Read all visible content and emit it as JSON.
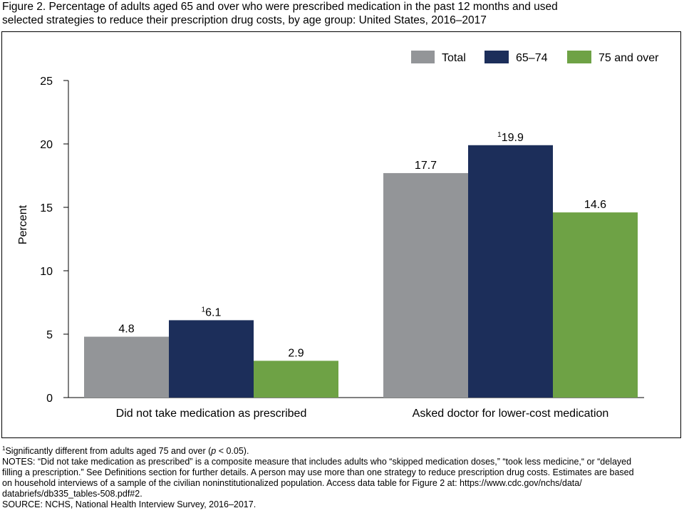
{
  "title": {
    "line1": "Figure 2. Percentage of adults aged 65 and over who were prescribed medication in the past 12 months and used",
    "line2": "selected strategies to reduce their prescription drug costs, by age group: United States, 2016–2017"
  },
  "chart_data": {
    "type": "bar",
    "title": "Figure 2. Percentage of adults aged 65 and over who were prescribed medication in the past 12 months and used selected strategies to reduce their prescription drug costs, by age group: United States, 2016–2017",
    "categories": [
      "Did not take medication as prescribed",
      "Asked doctor for lower-cost medication"
    ],
    "series": [
      {
        "name": "Total",
        "color": "#939598",
        "values": [
          4.8,
          17.7
        ],
        "labels": [
          "4.8",
          "17.7"
        ],
        "markers": [
          "",
          ""
        ]
      },
      {
        "name": "65–74",
        "color": "#1c2e5a",
        "values": [
          6.1,
          19.9
        ],
        "labels": [
          "6.1",
          "19.9"
        ],
        "markers": [
          "1",
          "1"
        ]
      },
      {
        "name": "75 and over",
        "color": "#6ea245",
        "values": [
          2.9,
          14.6
        ],
        "labels": [
          "2.9",
          "14.6"
        ],
        "markers": [
          "",
          ""
        ]
      }
    ],
    "ylabel": "Percent",
    "xlabel": "",
    "ylim": [
      0,
      25
    ],
    "yticks": [
      0,
      5,
      10,
      15,
      20,
      25
    ],
    "ytick_labels": [
      "0",
      "5",
      "10",
      "15",
      "20",
      "25"
    ],
    "legend_position": "top-right",
    "grid": false
  },
  "notes": {
    "footnote_marker": "1",
    "footnote_text": "Significantly different from adults aged 75 and over (",
    "footnote_p": "p",
    "footnote_tail": " < 0.05).",
    "line2": "NOTES: “Did not take medication as prescribed” is a composite measure that includes adults who “skipped medication doses,” “took less medicine,“ or “delayed",
    "line3": "filling a prescription.” See Definitions section for further details. A person may use more than one strategy to reduce prescription drug costs. Estimates are based",
    "line4": "on household interviews of a sample of the civilian noninstitutionalized population. Access data table for Figure 2 at: https://www.cdc.gov/nchs/data/",
    "line5": "databriefs/db335_tables-508.pdf#2.",
    "source": "SOURCE: NCHS, National Health Interview Survey, 2016–2017."
  }
}
